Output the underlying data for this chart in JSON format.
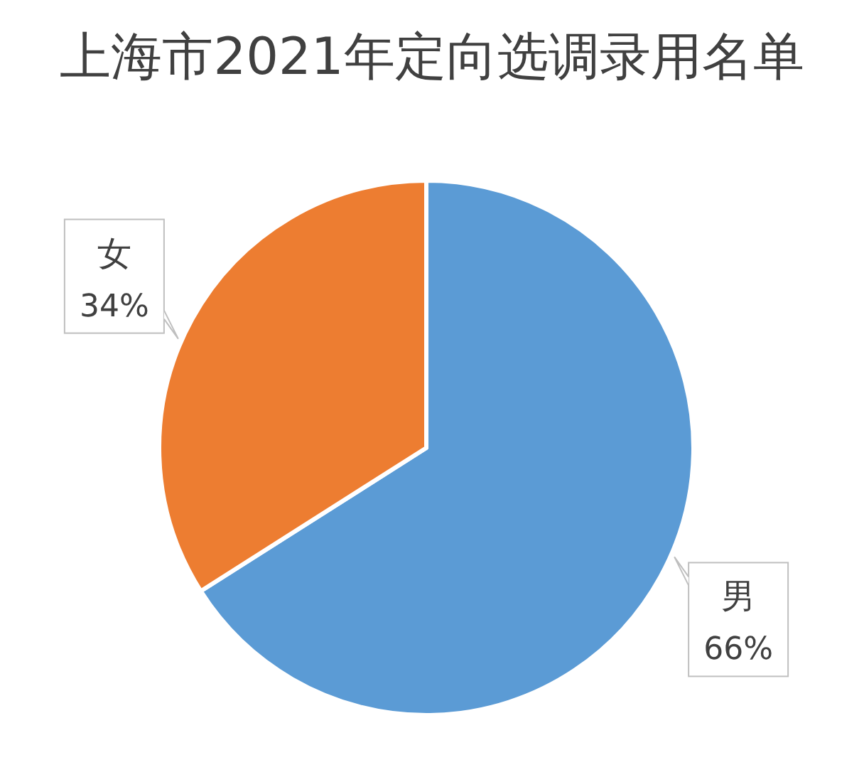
{
  "chart_data": {
    "type": "pie",
    "title": "上海市2021年定向选调录用名单",
    "categories": [
      "男",
      "女"
    ],
    "values": [
      66,
      34
    ],
    "value_labels": [
      "66%",
      "34%"
    ],
    "colors": [
      "#5b9bd5",
      "#ed7d31"
    ],
    "legend": false
  }
}
